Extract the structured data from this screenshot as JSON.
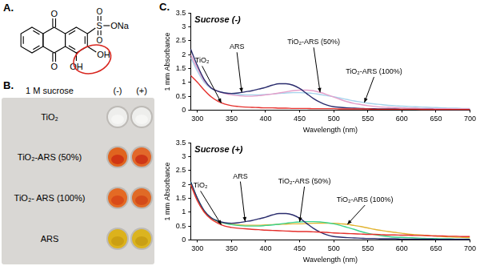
{
  "panel_a": {
    "label": "A.",
    "atoms": [
      "O",
      "O",
      "S",
      "O",
      "O",
      "ONa",
      "OH",
      "OH"
    ]
  },
  "panel_b": {
    "label": "B.",
    "header": "1 M sucrose",
    "columns": [
      "(-)",
      "(+)"
    ],
    "rows": [
      "TiO₂",
      "TiO₂-ARS (50%)",
      "TiO₂- ARS (100%)",
      "ARS"
    ]
  },
  "panel_c": {
    "label": "C."
  },
  "chart_data": [
    {
      "type": "line",
      "title": "Sucrose (-)",
      "x_label": "Wavelength (nm)",
      "y_label": "1 mm Absorbance",
      "x": [
        290,
        300,
        310,
        320,
        330,
        340,
        350,
        360,
        370,
        380,
        390,
        400,
        410,
        420,
        430,
        440,
        450,
        460,
        470,
        480,
        490,
        500,
        510,
        520,
        530,
        540,
        550,
        560,
        570,
        580,
        590,
        600,
        610,
        620,
        630,
        640,
        650,
        660,
        670,
        680,
        690,
        700
      ],
      "xlim": [
        290,
        700
      ],
      "xticks": [
        300,
        350,
        400,
        450,
        500,
        550,
        600,
        650,
        700
      ],
      "ylim": [
        0,
        3.5
      ],
      "yticks": [
        0,
        0.5,
        1,
        1.5,
        2,
        2.5,
        3,
        3.5
      ],
      "grid": false,
      "series": [
        {
          "name": "TiO₂",
          "color": "#e5302c",
          "values": [
            1.25,
            1.0,
            0.72,
            0.48,
            0.32,
            0.22,
            0.16,
            0.13,
            0.11,
            0.1,
            0.09,
            0.08,
            0.08,
            0.07,
            0.07,
            0.06,
            0.06,
            0.06,
            0.05,
            0.05,
            0.05,
            0.05,
            0.04,
            0.04,
            0.04,
            0.04,
            0.04,
            0.03,
            0.03,
            0.03,
            0.03,
            0.03,
            0.03,
            0.03,
            0.02,
            0.02,
            0.02,
            0.02,
            0.02,
            0.02,
            0.02,
            0.02
          ]
        },
        {
          "name": "ARS",
          "color": "#2b2d6e",
          "values": [
            2.2,
            1.6,
            1.1,
            0.8,
            0.68,
            0.62,
            0.6,
            0.62,
            0.66,
            0.7,
            0.76,
            0.82,
            0.9,
            0.95,
            0.95,
            0.9,
            0.78,
            0.6,
            0.42,
            0.28,
            0.18,
            0.12,
            0.1,
            0.08,
            0.07,
            0.06,
            0.05,
            0.05,
            0.04,
            0.04,
            0.04,
            0.03,
            0.03,
            0.03,
            0.03,
            0.03,
            0.02,
            0.02,
            0.02,
            0.02,
            0.02,
            0.02
          ]
        },
        {
          "name": "TiO₂-ARS (50%)",
          "color": "#e59fca",
          "values": [
            2.0,
            1.5,
            1.05,
            0.8,
            0.68,
            0.6,
            0.55,
            0.52,
            0.5,
            0.5,
            0.52,
            0.55,
            0.58,
            0.62,
            0.66,
            0.7,
            0.72,
            0.72,
            0.7,
            0.64,
            0.56,
            0.47,
            0.38,
            0.3,
            0.24,
            0.2,
            0.16,
            0.13,
            0.11,
            0.1,
            0.09,
            0.08,
            0.07,
            0.07,
            0.06,
            0.06,
            0.05,
            0.05,
            0.05,
            0.04,
            0.04,
            0.04
          ]
        },
        {
          "name": "TiO₂-ARS (100%)",
          "color": "#a6d3ec",
          "values": [
            1.9,
            1.4,
            1.0,
            0.78,
            0.68,
            0.62,
            0.58,
            0.56,
            0.55,
            0.55,
            0.55,
            0.56,
            0.58,
            0.6,
            0.62,
            0.63,
            0.63,
            0.62,
            0.6,
            0.56,
            0.52,
            0.48,
            0.43,
            0.38,
            0.33,
            0.29,
            0.25,
            0.22,
            0.2,
            0.17,
            0.16,
            0.14,
            0.13,
            0.12,
            0.11,
            0.1,
            0.09,
            0.08,
            0.07,
            0.07,
            0.06,
            0.06
          ]
        }
      ],
      "annotations": [
        {
          "text": "TiO₂",
          "x": 335,
          "y": 0.26
        },
        {
          "text": "ARS",
          "x": 365,
          "y": 0.64
        },
        {
          "text": "TiO₂-ARS (50%)",
          "x": 480,
          "y": 0.64
        },
        {
          "text": "TiO₂-ARS (100%)",
          "x": 545,
          "y": 0.27
        }
      ]
    },
    {
      "type": "line",
      "title": "Sucrose (+)",
      "x_label": "Wavelength (nm)",
      "y_label": "1 mm Absorbance",
      "x": [
        290,
        300,
        310,
        320,
        330,
        340,
        350,
        360,
        370,
        380,
        390,
        400,
        410,
        420,
        430,
        440,
        450,
        460,
        470,
        480,
        490,
        500,
        510,
        520,
        530,
        540,
        550,
        560,
        570,
        580,
        590,
        600,
        610,
        620,
        630,
        640,
        650,
        660,
        670,
        680,
        690,
        700
      ],
      "xlim": [
        290,
        700
      ],
      "xticks": [
        300,
        350,
        400,
        450,
        500,
        550,
        600,
        650,
        700
      ],
      "ylim": [
        0,
        3.5
      ],
      "yticks": [
        0,
        0.5,
        1,
        1.5,
        2,
        2.5,
        3,
        3.5
      ],
      "grid": false,
      "series": [
        {
          "name": "TiO₂",
          "color": "#e5302c",
          "values": [
            2.0,
            1.4,
            1.0,
            0.75,
            0.6,
            0.5,
            0.45,
            0.42,
            0.4,
            0.38,
            0.37,
            0.35,
            0.34,
            0.33,
            0.32,
            0.31,
            0.3,
            0.3,
            0.29,
            0.28,
            0.27,
            0.25,
            0.24,
            0.23,
            0.22,
            0.21,
            0.2,
            0.2,
            0.19,
            0.18,
            0.18,
            0.17,
            0.17,
            0.16,
            0.16,
            0.15,
            0.14,
            0.14,
            0.13,
            0.13,
            0.12,
            0.12
          ]
        },
        {
          "name": "ARS",
          "color": "#2b2d6e",
          "values": [
            2.1,
            1.5,
            1.05,
            0.8,
            0.68,
            0.62,
            0.6,
            0.62,
            0.66,
            0.7,
            0.76,
            0.82,
            0.9,
            0.95,
            0.95,
            0.9,
            0.78,
            0.6,
            0.42,
            0.28,
            0.18,
            0.12,
            0.1,
            0.08,
            0.07,
            0.06,
            0.05,
            0.05,
            0.04,
            0.04,
            0.04,
            0.03,
            0.03,
            0.03,
            0.03,
            0.03,
            0.02,
            0.02,
            0.02,
            0.02,
            0.02,
            0.02
          ]
        },
        {
          "name": "TiO₂-ARS (50%)",
          "color": "#3ed48d",
          "values": [
            2.1,
            1.5,
            1.05,
            0.8,
            0.68,
            0.6,
            0.55,
            0.52,
            0.5,
            0.5,
            0.5,
            0.52,
            0.54,
            0.57,
            0.6,
            0.63,
            0.65,
            0.66,
            0.66,
            0.65,
            0.62,
            0.58,
            0.52,
            0.45,
            0.38,
            0.3,
            0.24,
            0.19,
            0.15,
            0.12,
            0.1,
            0.09,
            0.08,
            0.07,
            0.06,
            0.05,
            0.05,
            0.04,
            0.04,
            0.03,
            0.03,
            0.03
          ]
        },
        {
          "name": "TiO₂-ARS (100%)",
          "color": "#e2b431",
          "values": [
            2.0,
            1.45,
            1.0,
            0.78,
            0.66,
            0.6,
            0.56,
            0.54,
            0.53,
            0.53,
            0.53,
            0.54,
            0.55,
            0.56,
            0.57,
            0.58,
            0.58,
            0.59,
            0.6,
            0.6,
            0.6,
            0.6,
            0.58,
            0.56,
            0.52,
            0.48,
            0.43,
            0.38,
            0.34,
            0.3,
            0.27,
            0.24,
            0.21,
            0.19,
            0.17,
            0.15,
            0.14,
            0.12,
            0.11,
            0.1,
            0.09,
            0.08
          ]
        }
      ],
      "annotations": [
        {
          "text": "TiO₂",
          "x": 335,
          "y": 0.55
        },
        {
          "text": "ARS",
          "x": 370,
          "y": 0.66
        },
        {
          "text": "TiO₂-ARS (50%)",
          "x": 450,
          "y": 0.65
        },
        {
          "text": "TiO₂-ARS (100%)",
          "x": 520,
          "y": 0.56
        }
      ]
    }
  ]
}
